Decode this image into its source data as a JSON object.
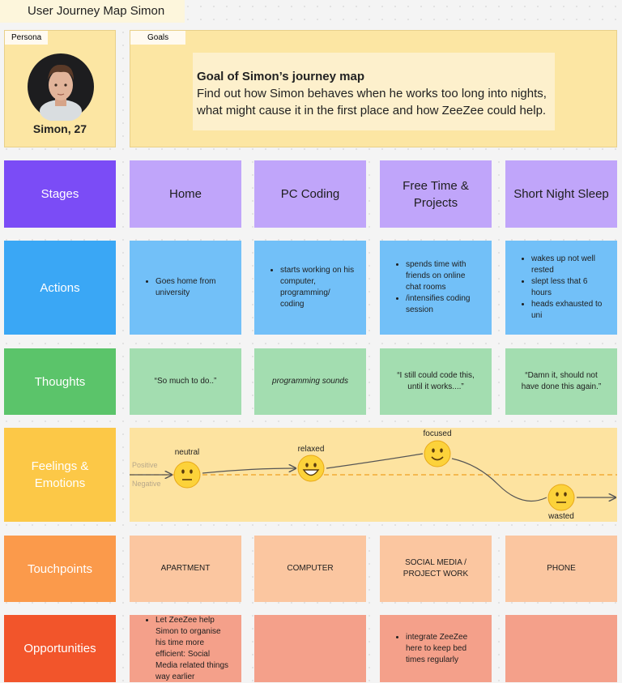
{
  "title": "User Journey Map Simon",
  "persona": {
    "label": "Persona",
    "name": "Simon, 27"
  },
  "goals": {
    "label": "Goals",
    "heading": "Goal of Simon’s journey map",
    "lines": [
      "Find out how Simon behaves when he works too long into nights,",
      "what might cause it in the first place and how ZeeZee could help."
    ]
  },
  "stages": {
    "label": "Stages",
    "cells": [
      "Home",
      "PC Coding",
      "Free Time & Projects",
      "Short Night Sleep"
    ]
  },
  "actions": {
    "label": "Actions",
    "cells": [
      [
        "Goes home from university"
      ],
      [
        "starts working on his computer, programming/ coding"
      ],
      [
        "spends time with friends on online chat rooms",
        "/intensifies coding session"
      ],
      [
        "wakes up not well rested",
        "slept less that 6 hours",
        "heads exhausted to uni"
      ]
    ]
  },
  "thoughts": {
    "label": "Thoughts",
    "cells": [
      "“So much to do..”",
      "programming sounds",
      "“I still could code this, until it works....”",
      "“Damn it, should not have done this again.”"
    ]
  },
  "feelings": {
    "label": "Feelings & Emotions",
    "positive": "Positive",
    "negative": "Negative",
    "emotions": [
      "neutral",
      "relaxed",
      "focused",
      "wasted"
    ]
  },
  "touchpoints": {
    "label": "Touchpoints",
    "cells": [
      "APARTMENT",
      "COMPUTER",
      "SOCIAL MEDIA / PROJECT WORK",
      "PHONE"
    ]
  },
  "opportunities": {
    "label": "Opportunities",
    "cells": [
      [
        "Let ZeeZee help Simon to organise his time more efficient: Social Media related things way earlier"
      ],
      [],
      [
        "integrate ZeeZee here to keep bed times regularly"
      ],
      []
    ]
  }
}
